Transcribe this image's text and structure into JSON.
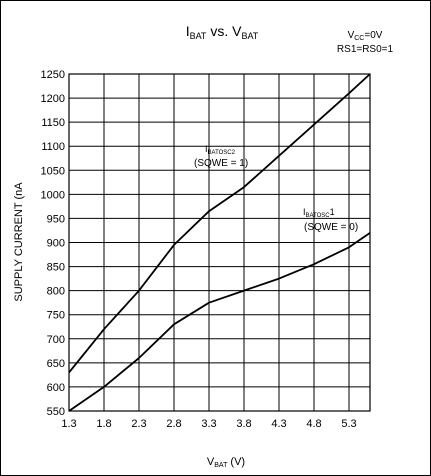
{
  "chart_data": {
    "type": "line",
    "title": {
      "main": "I",
      "sub1": "BAT",
      "mid": " vs. V",
      "sub2": "BAT"
    },
    "conditions": [
      {
        "main": "V",
        "sub": "CC",
        "rest": "=0V"
      },
      {
        "main": "RS1=RS0=1",
        "sub": "",
        "rest": ""
      }
    ],
    "xlabel": {
      "main": "V",
      "sub": "BAT",
      "rest": " (V)"
    },
    "ylabel": "SUPPLY CURRENT (nA",
    "xlim": [
      1.3,
      5.6
    ],
    "ylim": [
      550,
      1250
    ],
    "xticks": [
      "1.3",
      "1.8",
      "2.3",
      "2.8",
      "3.3",
      "3.8",
      "4.3",
      "4.8",
      "5.3"
    ],
    "yticks": [
      "550",
      "600",
      "650",
      "700",
      "750",
      "800",
      "850",
      "900",
      "950",
      "1000",
      "1050",
      "1100",
      "1150",
      "1200",
      "1250"
    ],
    "grid": true,
    "series": [
      {
        "label_main": "I",
        "label_sub": "BATOSC2",
        "label_rest": "",
        "label_line2": "(SQWE = 1)",
        "x": [
          1.3,
          1.8,
          2.3,
          2.8,
          3.3,
          3.8,
          4.3,
          4.8,
          5.3,
          5.6
        ],
        "y": [
          630,
          720,
          800,
          895,
          965,
          1015,
          1080,
          1145,
          1210,
          1250
        ]
      },
      {
        "label_main": "I",
        "label_sub": "BATOSC",
        "label_rest": "1",
        "label_line2": "(SQWE = 0)",
        "x": [
          1.3,
          1.8,
          2.3,
          2.8,
          3.3,
          3.8,
          4.3,
          4.8,
          5.3,
          5.6
        ],
        "y": [
          550,
          600,
          660,
          730,
          775,
          800,
          825,
          855,
          890,
          920
        ]
      }
    ]
  }
}
